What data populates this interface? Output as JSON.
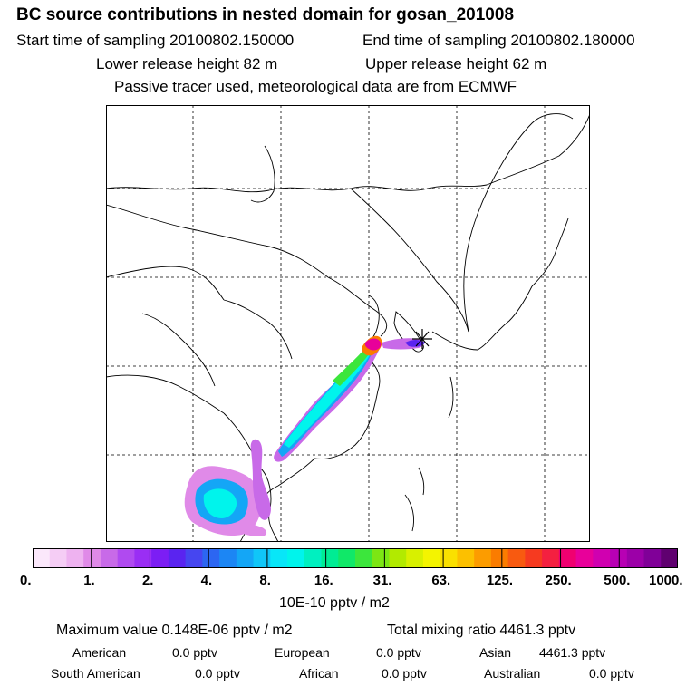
{
  "header": {
    "title": "BC  source contributions in nested domain for gosan_201008",
    "start_label": "Start time of sampling 20100802.150000",
    "end_label": "End time of sampling 20100802.180000",
    "lower_label": "Lower release height   82 m",
    "upper_label": "Upper release height   62 m",
    "tracer_note": "Passive tracer used, meteorological data are from ECMWF"
  },
  "colorbar": {
    "ticks": [
      "0.",
      "1.",
      "2.",
      "4.",
      "8.",
      "16.",
      "31.",
      "63.",
      "125.",
      "250.",
      "500.",
      "1000."
    ],
    "colors": [
      "#fbe8fb",
      "#f5cdf5",
      "#eeb2f0",
      "#e08ae8",
      "#c86ae8",
      "#b04af0",
      "#9a2ef4",
      "#7c1ef4",
      "#5a24f0",
      "#4646f0",
      "#2c66f2",
      "#1c86f4",
      "#14a6f6",
      "#10c6f8",
      "#08e6f8",
      "#00f4ec",
      "#00f0c0",
      "#00ec94",
      "#10e868",
      "#3ce63c",
      "#7ce614",
      "#b2ea00",
      "#d8f000",
      "#f4f400",
      "#fae000",
      "#fcc000",
      "#fc9c00",
      "#fa7c00",
      "#f85a10",
      "#f63a20",
      "#f42040",
      "#f00070",
      "#e8009a",
      "#d000b0",
      "#b800b4",
      "#9c00a8",
      "#800098",
      "#600070"
    ],
    "unit_label": "10E-10 pptv / m2"
  },
  "summary": {
    "max_label": "Maximum value  0.148E-06 pptv / m2",
    "total_label": "Total mixing ratio     4461.3 pptv",
    "regions": [
      {
        "name": "American",
        "value": "0.0 pptv"
      },
      {
        "name": "European",
        "value": "0.0 pptv"
      },
      {
        "name": "Asian",
        "value": "4461.3 pptv"
      },
      {
        "name": "South American",
        "value": "0.0 pptv"
      },
      {
        "name": "African",
        "value": "0.0 pptv"
      },
      {
        "name": "Australian",
        "value": "0.0 pptv"
      }
    ]
  }
}
